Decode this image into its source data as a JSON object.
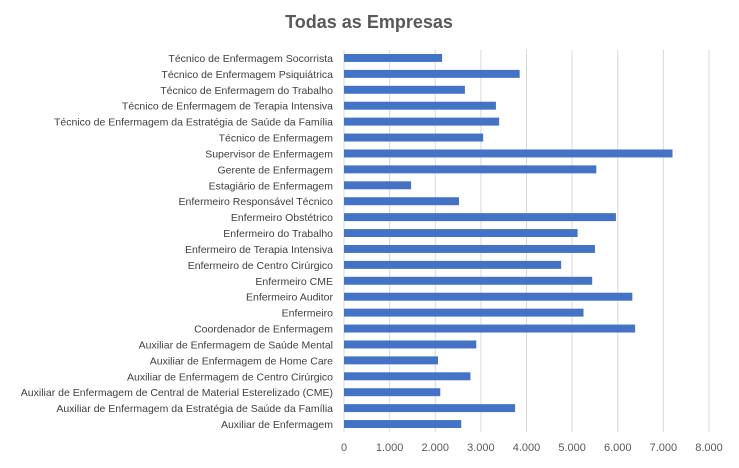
{
  "chart_data": {
    "type": "bar",
    "orientation": "horizontal",
    "title": "Todas as Empresas",
    "xlabel": "",
    "ylabel": "",
    "xlim": [
      0,
      8000
    ],
    "x_ticks": [
      0,
      1000,
      2000,
      3000,
      4000,
      5000,
      6000,
      7000,
      8000
    ],
    "x_tick_labels": [
      "0",
      "1.000",
      "2.000",
      "3.000",
      "4.000",
      "5.000",
      "6.000",
      "7.000",
      "8.000"
    ],
    "grid": "vertical",
    "legend": "none",
    "bar_color": "#4472C4",
    "grid_color": "#D9D9D9",
    "categories": [
      "Técnico de Enfermagem Socorrista",
      "Técnico de Enfermagem Psiquiátrica",
      "Técnico de Enfermagem do Trabalho",
      "Técnico de Enfermagem de Terapia Intensiva",
      "Técnico de Enfermagem da Estratégia de Saúde da Família",
      "Técnico de Enfermagem",
      "Supervisor de Enfermagem",
      "Gerente de Enfermagem",
      "Estagiário de Enfermagem",
      "Enfermeiro Responsável Técnico",
      "Enfermeiro Obstétrico",
      "Enfermeiro do Trabalho",
      "Enfermeiro de Terapia Intensiva",
      "Enfermeiro de Centro Cirúrgico",
      "Enfermeiro CME",
      "Enfermeiro Auditor",
      "Enfermeiro",
      "Coordenador de Enfermagem",
      "Auxiliar de Enfermagem de Saúde Mental",
      "Auxiliar de Enfermagem de Home Care",
      "Auxiliar de Enfermagem de Centro Cirúrgico",
      "Auxiliar de Enfermagem de Central de Material Esterelizado (CME)",
      "Auxiliar de Enfermagem da Estratégia de Saúde da Família",
      "Auxiliar de Enfermagem"
    ],
    "values": [
      2150,
      3850,
      2650,
      3330,
      3400,
      3050,
      7200,
      5530,
      1470,
      2520,
      5960,
      5120,
      5500,
      4760,
      5440,
      6320,
      5250,
      6380,
      2900,
      2060,
      2770,
      2110,
      3750,
      2570
    ]
  }
}
